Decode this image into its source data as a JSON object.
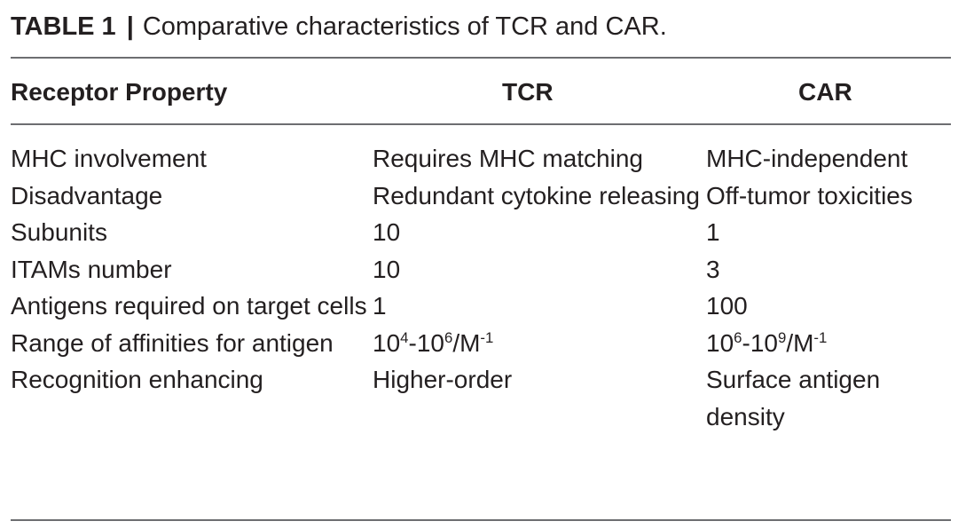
{
  "caption": {
    "label": "TABLE 1",
    "separator": "|",
    "title": "Comparative characteristics of TCR and CAR."
  },
  "table": {
    "headers": [
      "Receptor Property",
      "TCR",
      "CAR"
    ],
    "rows": [
      {
        "property": "MHC involvement",
        "tcr": "Requires MHC matching",
        "car": "MHC-independent"
      },
      {
        "property": "Disadvantage",
        "tcr": "Redundant cytokine releasing",
        "car": "Off-tumor toxicities"
      },
      {
        "property": "Subunits",
        "tcr": "10",
        "car": "1"
      },
      {
        "property": "ITAMs number",
        "tcr": "10",
        "car": "3"
      },
      {
        "property": "Antigens required on target cells",
        "tcr": "1",
        "car": "100"
      },
      {
        "property": "Range of affinities for antigen",
        "tcr": "10⁴-10⁶/M⁻¹",
        "car": "10⁶-10⁹/M⁻¹",
        "tcr_parts": {
          "base1": "10",
          "exp1": "4",
          "mid": "-10",
          "exp2": "6",
          "unit": "/M",
          "exp3": "-1"
        },
        "car_parts": {
          "base1": "10",
          "exp1": "6",
          "mid": "-10",
          "exp2": "9",
          "unit": "/M",
          "exp3": "-1"
        }
      },
      {
        "property": "Recognition enhancing",
        "tcr": "Higher-order",
        "car": "Surface antigen density"
      }
    ]
  }
}
